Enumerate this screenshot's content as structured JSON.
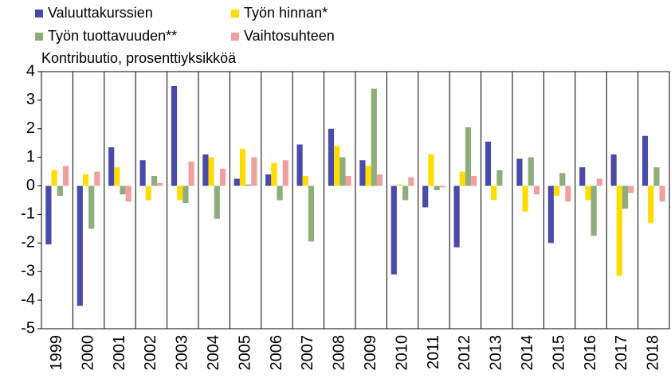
{
  "chart_data": {
    "type": "bar",
    "y_label": "Kontribuutio, prosenttiyksikköä",
    "categories": [
      "1999",
      "2000",
      "2001",
      "2002",
      "2003",
      "2004",
      "2005",
      "2006",
      "2007",
      "2008",
      "2009",
      "2010",
      "2011",
      "2012",
      "2013",
      "2014",
      "2015",
      "2016",
      "2017",
      "2018"
    ],
    "series": [
      {
        "name": "Valuuttakurssien",
        "color": "#4a4aa8",
        "values": [
          -2.05,
          -4.2,
          1.35,
          0.9,
          3.5,
          1.1,
          0.25,
          0.4,
          1.45,
          2.0,
          0.9,
          -3.1,
          -0.75,
          -2.15,
          1.55,
          0.95,
          -2.0,
          0.65,
          1.1,
          1.75
        ]
      },
      {
        "name": "Työn hinnan*",
        "color": "#ffdd00",
        "values": [
          0.55,
          0.4,
          0.65,
          -0.5,
          -0.5,
          1.0,
          1.3,
          0.8,
          0.35,
          1.4,
          0.7,
          0.05,
          1.1,
          0.5,
          -0.5,
          -0.9,
          -0.35,
          -0.5,
          -3.15,
          -1.3
        ]
      },
      {
        "name": "Työn tuottavuuden**",
        "color": "#8fad7c",
        "values": [
          -0.35,
          -1.5,
          -0.3,
          0.35,
          -0.6,
          -1.15,
          0.05,
          -0.5,
          -1.95,
          1.0,
          3.4,
          -0.5,
          -0.15,
          2.05,
          0.55,
          1.0,
          0.45,
          -1.75,
          -0.8,
          0.65
        ]
      },
      {
        "name": "Vaihtosuhteen",
        "color": "#f0a0a0",
        "values": [
          0.7,
          0.5,
          -0.55,
          0.1,
          0.85,
          0.6,
          1.0,
          0.9,
          0,
          0.35,
          0.4,
          0.3,
          -0.05,
          0.35,
          0,
          -0.3,
          -0.55,
          0.25,
          -0.25,
          -0.55
        ]
      }
    ],
    "ylim": [
      -5,
      4
    ],
    "yticks": [
      -5,
      -4,
      -3,
      -2,
      -1,
      0,
      1,
      2,
      3,
      4
    ],
    "category_separators": true
  }
}
